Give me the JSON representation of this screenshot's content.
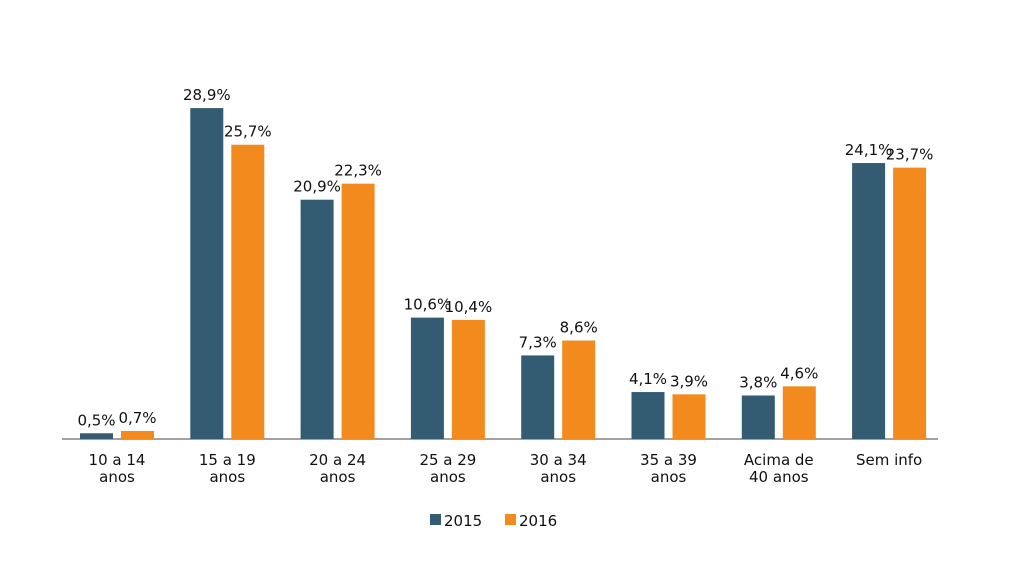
{
  "chart_data": {
    "type": "bar",
    "categories": [
      "10 a 14 anos",
      "15 a 19 anos",
      "20 a 24 anos",
      "25 a 29 anos",
      "30 a 34 anos",
      "35 a 39 anos",
      "Acima de 40 anos",
      "Sem info"
    ],
    "series": [
      {
        "name": "2015",
        "color": "#335c72",
        "values": [
          0.5,
          28.9,
          20.9,
          10.6,
          7.3,
          4.1,
          3.8,
          24.1
        ],
        "value_labels": [
          "0,5%",
          "28,9%",
          "20,9%",
          "10,6%",
          "7,3%",
          "4,1%",
          "3,8%",
          "24,1%"
        ]
      },
      {
        "name": "2016",
        "color": "#f28a1e",
        "values": [
          0.7,
          25.7,
          22.3,
          10.4,
          8.6,
          3.9,
          4.6,
          23.7
        ],
        "value_labels": [
          "0,7%",
          "25,7%",
          "22,3%",
          "10,4%",
          "8,6%",
          "3,9%",
          "4,6%",
          "23,7%"
        ]
      }
    ],
    "legend": "bottom"
  }
}
